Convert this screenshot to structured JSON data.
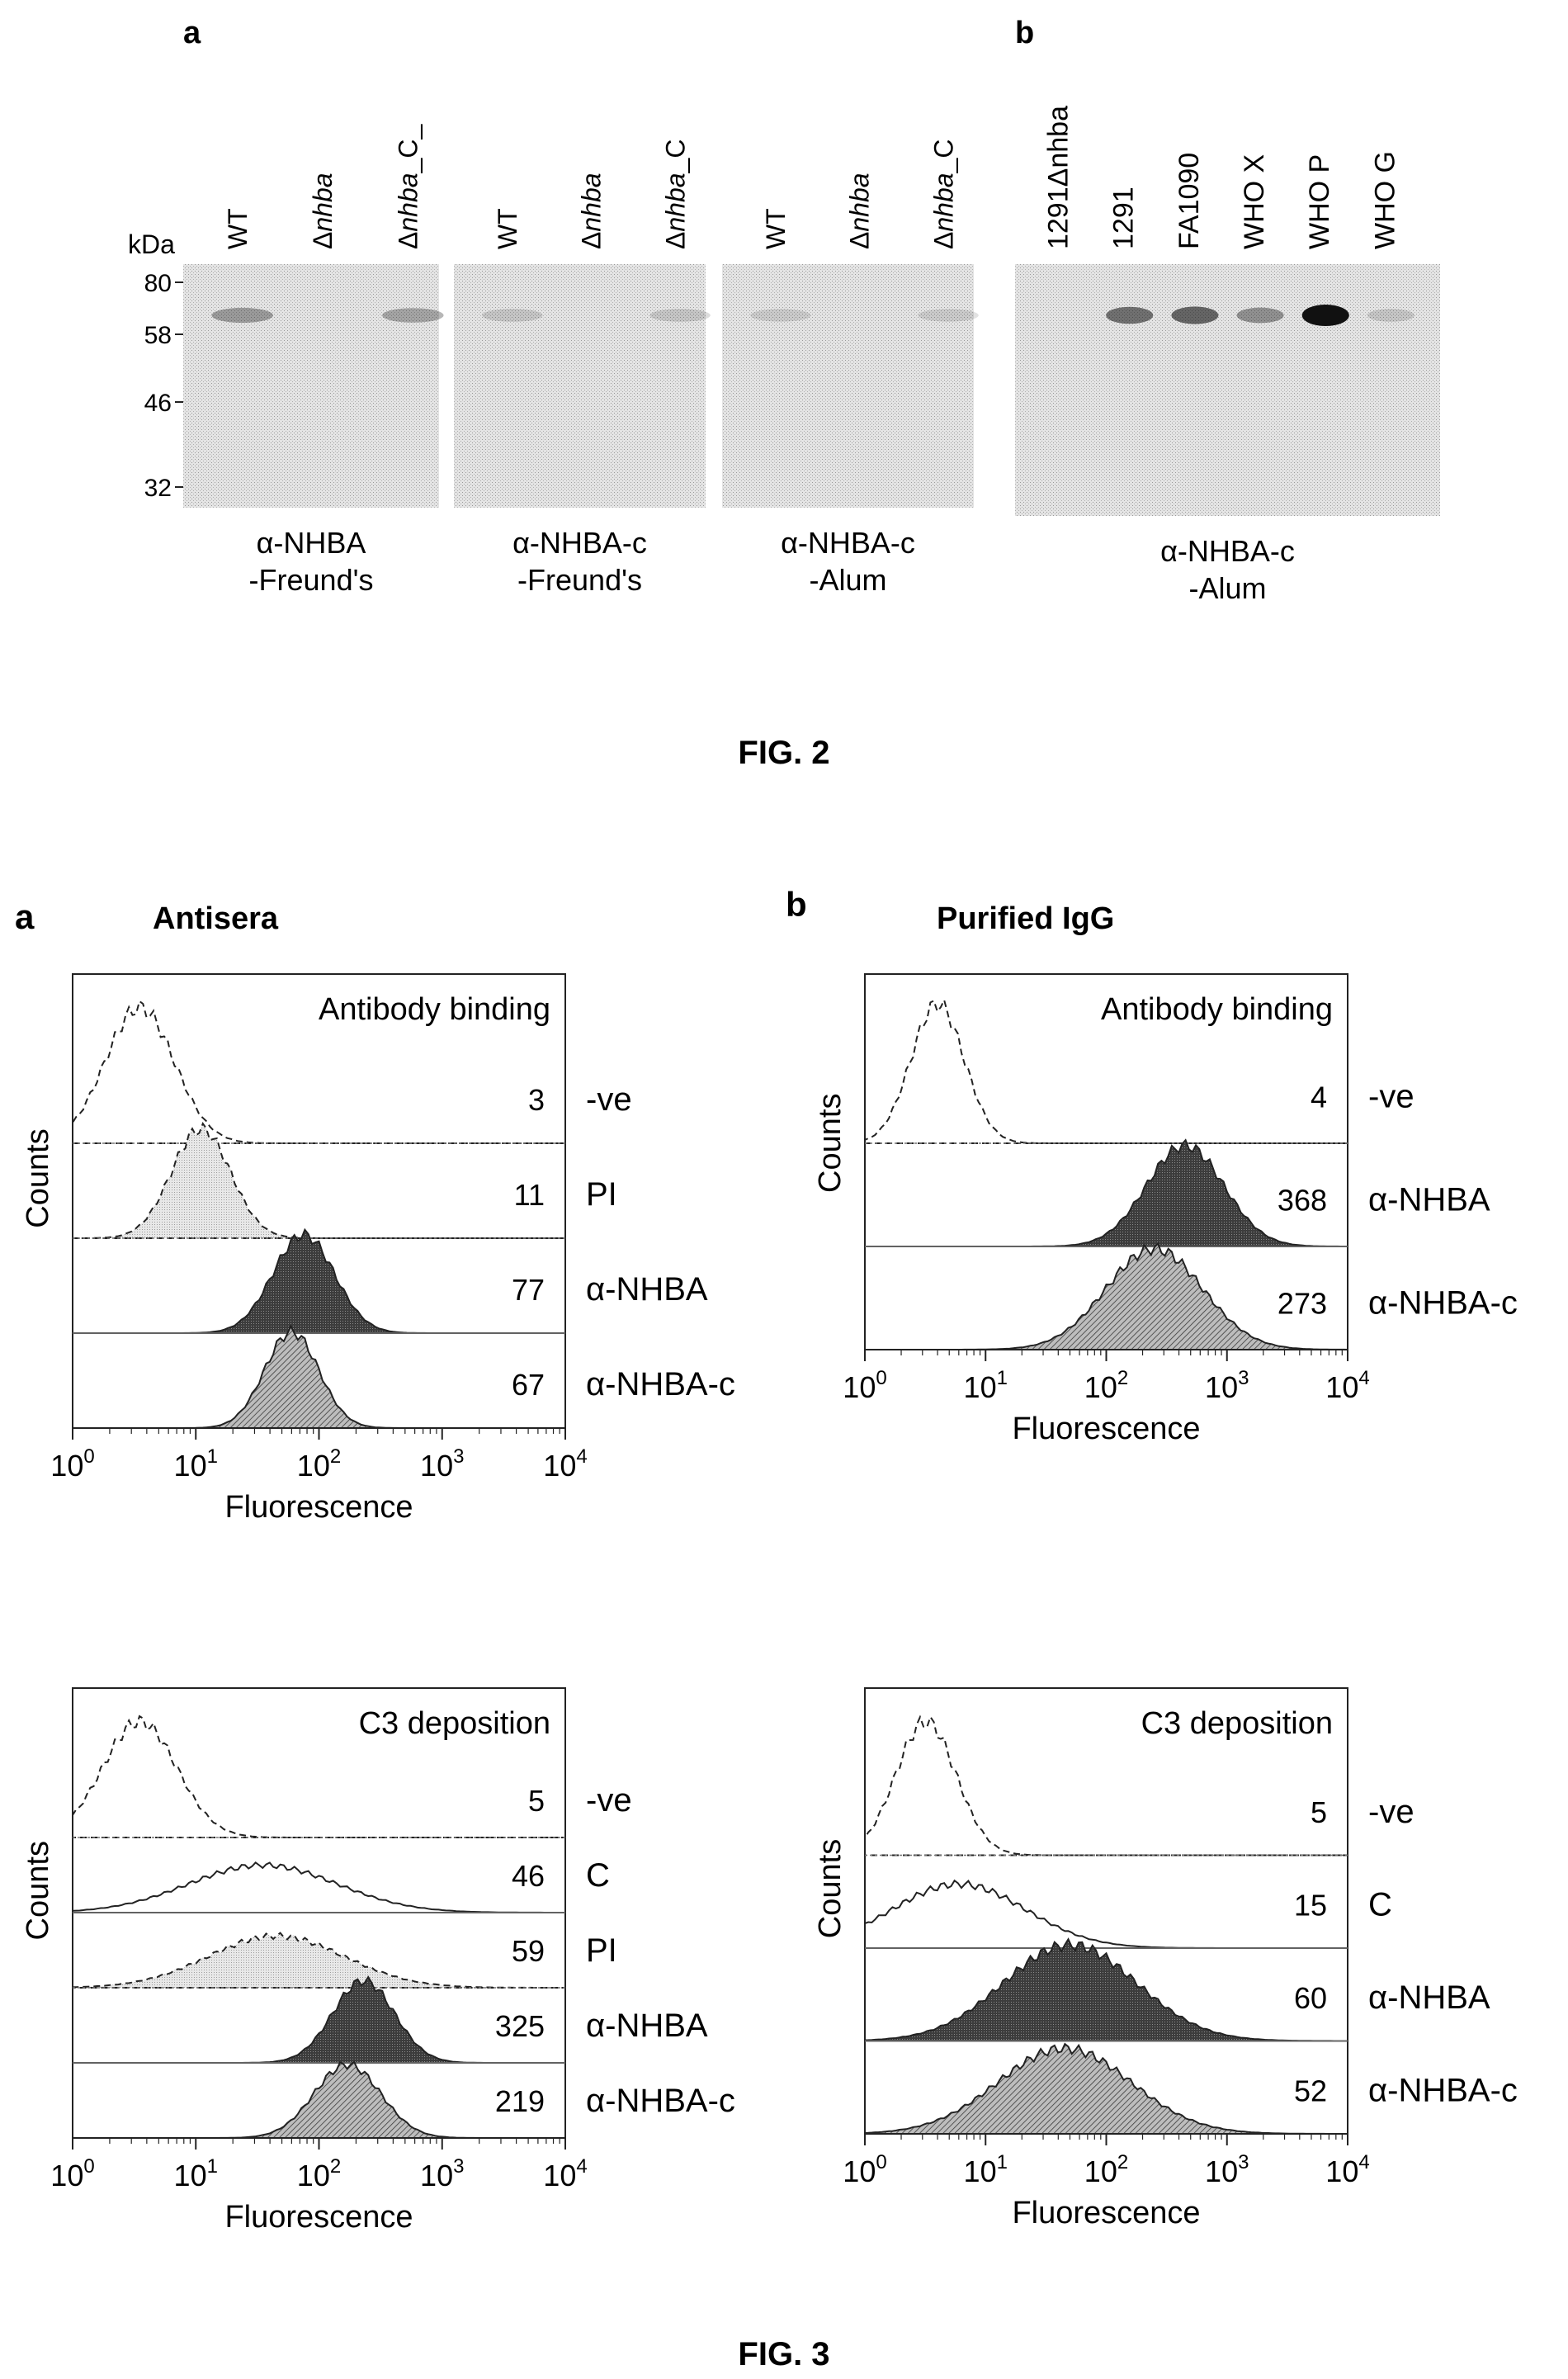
{
  "fig2": {
    "caption": "FIG. 2",
    "panel_a_letter": "a",
    "panel_b_letter": "b",
    "kda_title": "kDa",
    "kda_marks": [
      "80",
      "58",
      "46",
      "32"
    ],
    "blots": [
      {
        "lanes": [
          {
            "base": "WT",
            "pre": "",
            "ital": false,
            "post": ""
          },
          {
            "base": "nhba",
            "pre": "Δ",
            "ital": true,
            "post": ""
          },
          {
            "base": "nhba",
            "pre": "Δ",
            "ital": true,
            "post": "_C_"
          }
        ],
        "caption1": "α-NHBA",
        "caption2": "-Freund's",
        "bands": [
          {
            "lane": 0,
            "intensity": 0.35
          },
          {
            "lane": 2,
            "intensity": 0.3
          }
        ]
      },
      {
        "lanes": [
          {
            "base": "WT",
            "pre": "",
            "ital": false,
            "post": ""
          },
          {
            "base": "nhba",
            "pre": "Δ",
            "ital": true,
            "post": ""
          },
          {
            "base": "nhba",
            "pre": "Δ",
            "ital": true,
            "post": "_C"
          }
        ],
        "caption1": "α-NHBA-c",
        "caption2": "-Freund's",
        "bands": [
          {
            "lane": 0,
            "intensity": 0.15
          },
          {
            "lane": 2,
            "intensity": 0.15
          }
        ]
      },
      {
        "lanes": [
          {
            "base": "WT",
            "pre": "",
            "ital": false,
            "post": ""
          },
          {
            "base": "nhba",
            "pre": "Δ",
            "ital": true,
            "post": ""
          },
          {
            "base": "nhba",
            "pre": "Δ",
            "ital": true,
            "post": "_C"
          }
        ],
        "caption1": "α-NHBA-c",
        "caption2": "-Alum",
        "bands": [
          {
            "lane": 0,
            "intensity": 0.12
          },
          {
            "lane": 2,
            "intensity": 0.12
          }
        ]
      },
      {
        "lanes": [
          {
            "base": "1291",
            "pre": "",
            "ital": false,
            "post": "Δnhba"
          },
          {
            "base": "1291",
            "pre": "",
            "ital": false,
            "post": ""
          },
          {
            "base": "FA1090",
            "pre": "",
            "ital": false,
            "post": ""
          },
          {
            "base": "WHO X",
            "pre": "",
            "ital": false,
            "post": ""
          },
          {
            "base": "WHO P",
            "pre": "",
            "ital": false,
            "post": ""
          },
          {
            "base": "WHO G",
            "pre": "",
            "ital": false,
            "post": ""
          }
        ],
        "caption1": "α-NHBA-c",
        "caption2": "-Alum",
        "bands": [
          {
            "lane": 1,
            "intensity": 0.55
          },
          {
            "lane": 2,
            "intensity": 0.6
          },
          {
            "lane": 3,
            "intensity": 0.4
          },
          {
            "lane": 4,
            "intensity": 1.0
          },
          {
            "lane": 5,
            "intensity": 0.15
          }
        ]
      }
    ]
  },
  "fig3": {
    "caption": "FIG. 3",
    "panel_a_letter": "a",
    "panel_a_title": "Antisera",
    "panel_b_letter": "b",
    "panel_b_title": "Purified IgG",
    "ylabel": "Counts",
    "xlabel": "Fluorescence",
    "x_ticks": [
      "10^0",
      "10^1",
      "10^2",
      "10^3",
      "10^4"
    ]
  },
  "chart_data": [
    {
      "type": "area",
      "title": "Antibody binding",
      "panel": "a",
      "xlabel": "Fluorescence",
      "ylabel": "Counts",
      "x_scale": "log",
      "xlim": [
        1,
        10000
      ],
      "series": [
        {
          "name": "-ve",
          "value": "3",
          "style": "dashed",
          "fill": "none",
          "peak": 3.5,
          "width": 0.28,
          "height": 1.0
        },
        {
          "name": "PI",
          "value": "11",
          "style": "dashed",
          "fill": "light",
          "peak": 11,
          "width": 0.24,
          "height": 1.0
        },
        {
          "name": "α-NHBA",
          "value": "77",
          "style": "solid",
          "fill": "dark",
          "peak": 75,
          "width": 0.25,
          "height": 0.9
        },
        {
          "name": "α-NHBA-c",
          "value": "67",
          "style": "solid",
          "fill": "hatch",
          "peak": 60,
          "width": 0.22,
          "height": 0.88
        }
      ]
    },
    {
      "type": "area",
      "title": "Antibody binding",
      "panel": "b",
      "xlabel": "Fluorescence",
      "ylabel": "Counts",
      "x_scale": "log",
      "xlim": [
        1,
        10000
      ],
      "series": [
        {
          "name": "-ve",
          "value": "4",
          "style": "dashed",
          "fill": "none",
          "peak": 4,
          "width": 0.22,
          "height": 1.0
        },
        {
          "name": "α-NHBA",
          "value": "368",
          "style": "solid",
          "fill": "dark",
          "peak": 450,
          "width": 0.32,
          "height": 0.85
        },
        {
          "name": "α-NHBA-c",
          "value": "273",
          "style": "solid",
          "fill": "hatch",
          "peak": 250,
          "width": 0.4,
          "height": 0.85
        }
      ]
    },
    {
      "type": "area",
      "title": "C3 deposition",
      "panel": "a",
      "xlabel": "Fluorescence",
      "ylabel": "Counts",
      "x_scale": "log",
      "xlim": [
        1,
        10000
      ],
      "series": [
        {
          "name": "-ve",
          "value": "5",
          "style": "dashed",
          "fill": "none",
          "peak": 3.5,
          "width": 0.3,
          "height": 1.0
        },
        {
          "name": "C",
          "value": "46",
          "style": "solid",
          "fill": "none",
          "peak": 35,
          "width": 0.6,
          "height": 0.55
        },
        {
          "name": "PI",
          "value": "59",
          "style": "dashed",
          "fill": "light",
          "peak": 45,
          "width": 0.55,
          "height": 0.6
        },
        {
          "name": "α-NHBA",
          "value": "325",
          "style": "solid",
          "fill": "dark",
          "peak": 230,
          "width": 0.25,
          "height": 0.95
        },
        {
          "name": "α-NHBA-c",
          "value": "219",
          "style": "solid",
          "fill": "hatch",
          "peak": 170,
          "width": 0.27,
          "height": 0.85
        }
      ]
    },
    {
      "type": "area",
      "title": "C3 deposition",
      "panel": "b",
      "xlabel": "Fluorescence",
      "ylabel": "Counts",
      "x_scale": "log",
      "xlim": [
        1,
        10000
      ],
      "series": [
        {
          "name": "-ve",
          "value": "5",
          "style": "dashed",
          "fill": "none",
          "peak": 3.2,
          "width": 0.25,
          "height": 1.0
        },
        {
          "name": "C",
          "value": "15",
          "style": "solid",
          "fill": "none",
          "peak": 6,
          "width": 0.55,
          "height": 0.6
        },
        {
          "name": "α-NHBA",
          "value": "60",
          "style": "solid",
          "fill": "dark",
          "peak": 50,
          "width": 0.55,
          "height": 0.9
        },
        {
          "name": "α-NHBA-c",
          "value": "52",
          "style": "solid",
          "fill": "hatch",
          "peak": 45,
          "width": 0.55,
          "height": 0.8
        }
      ]
    }
  ]
}
